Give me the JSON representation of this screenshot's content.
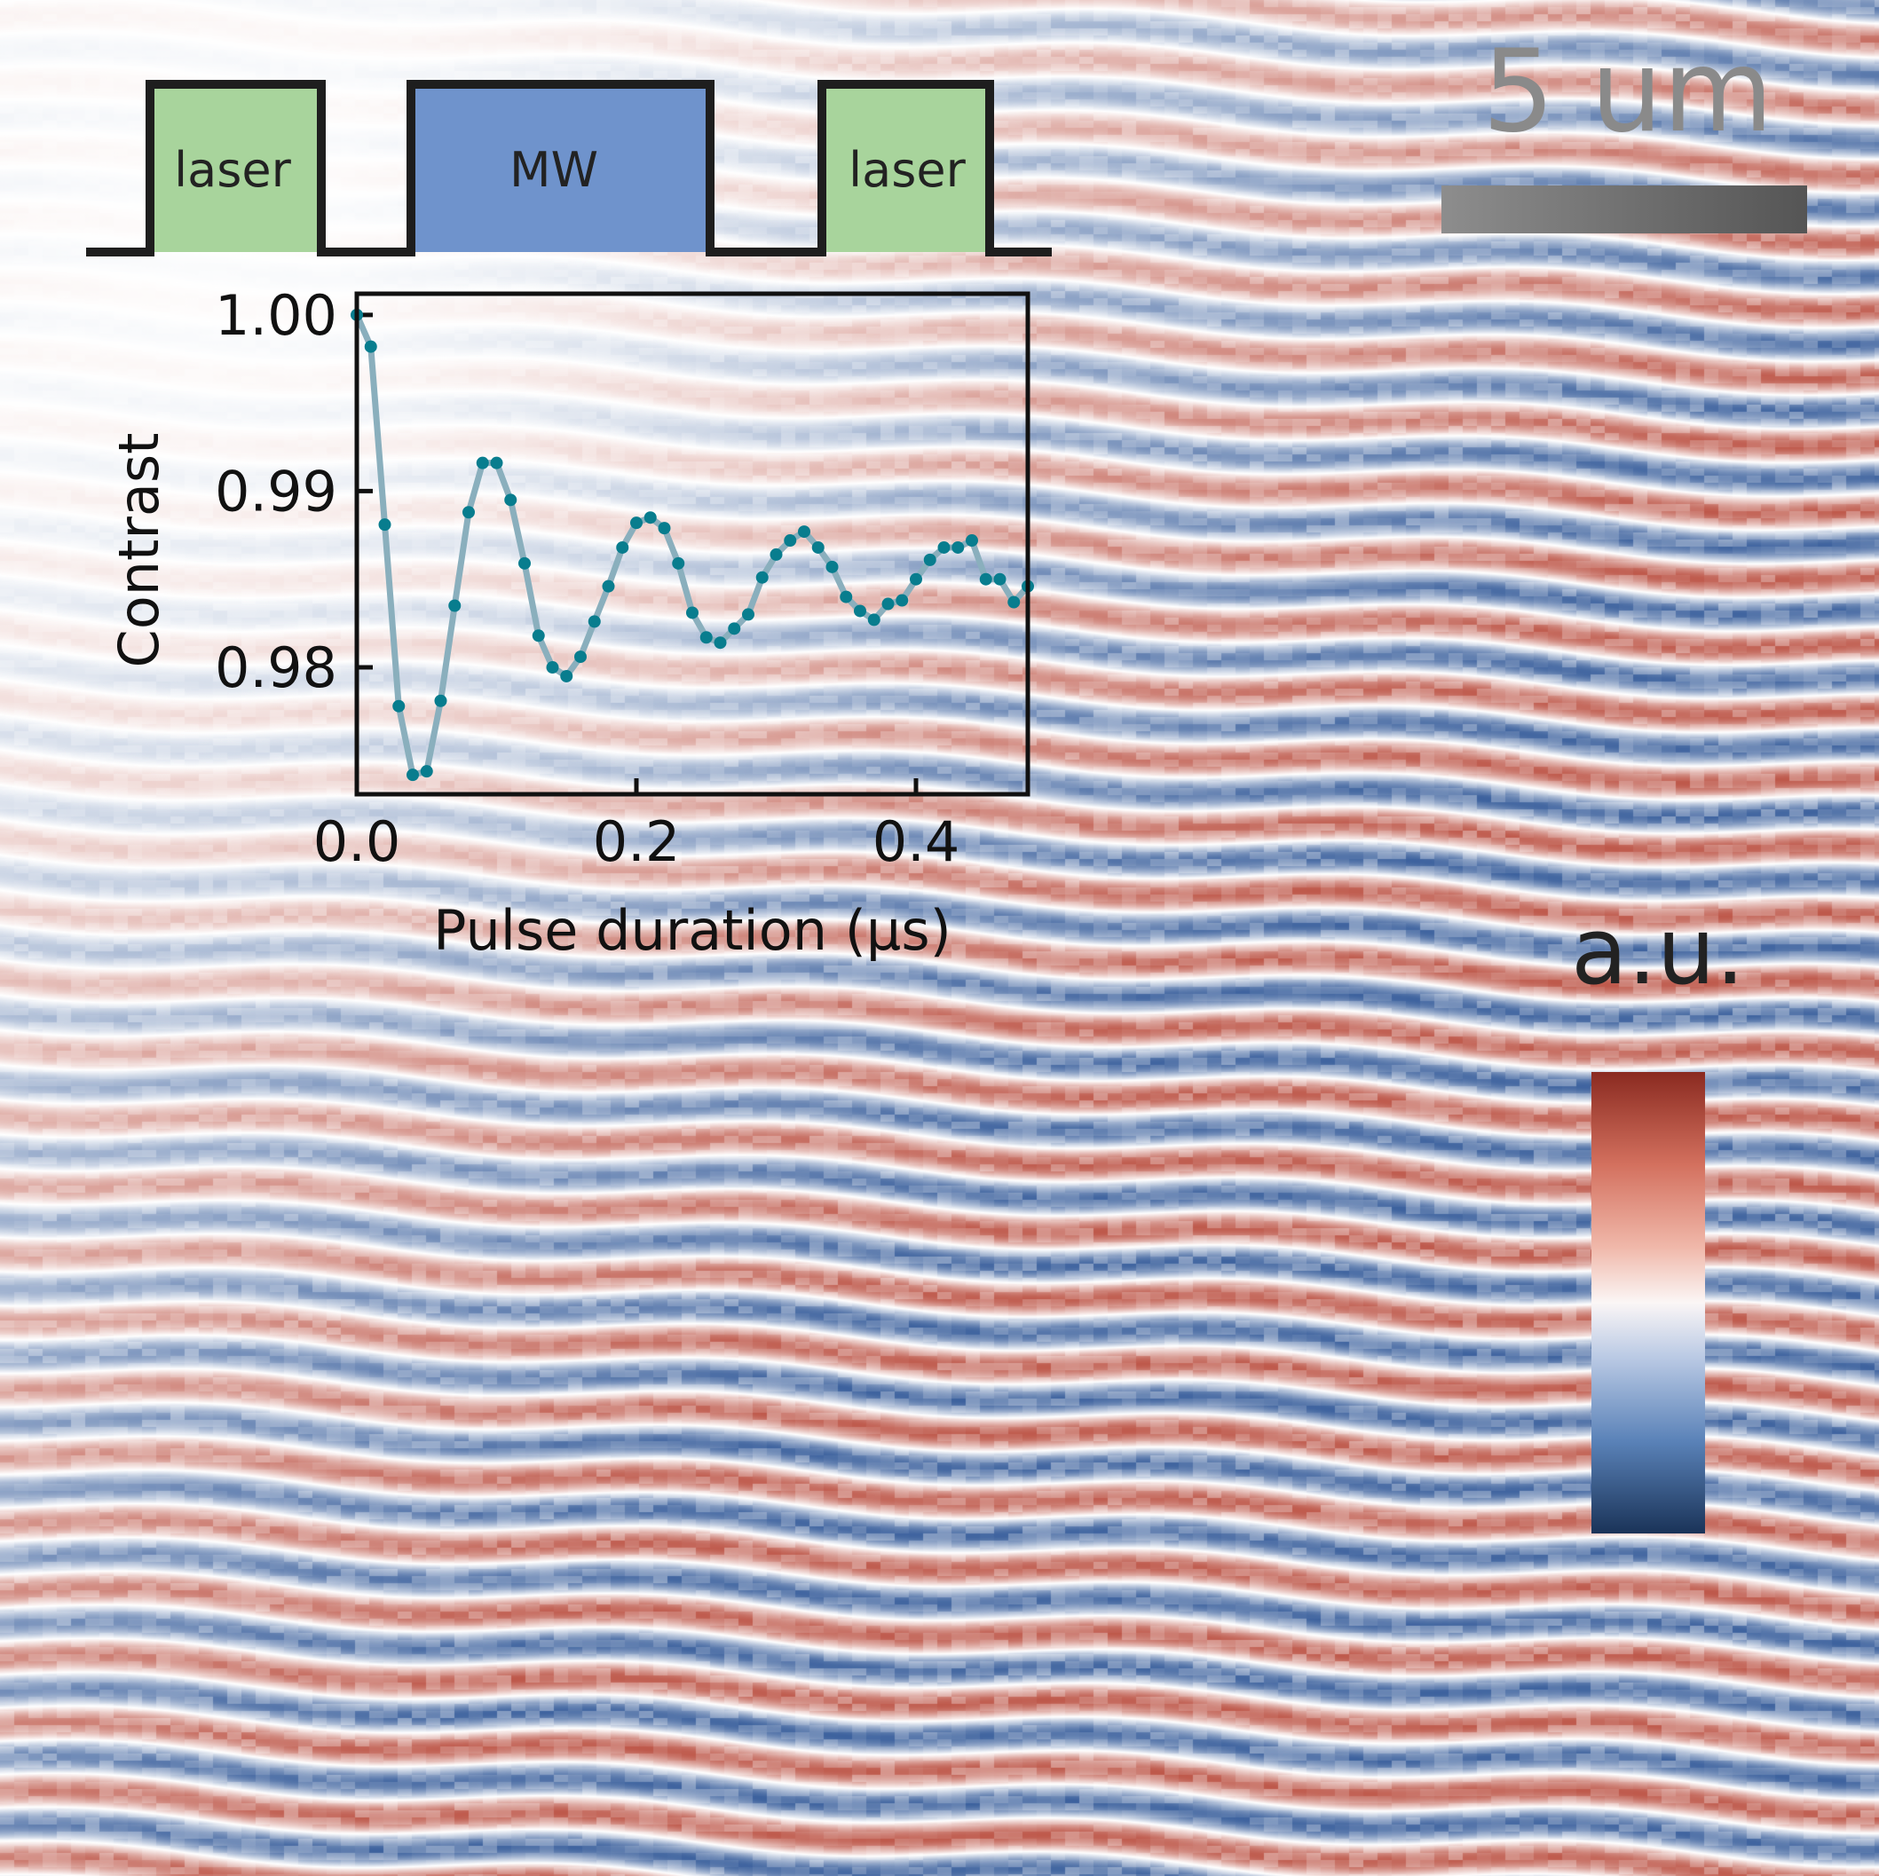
{
  "pulse_sequence": {
    "pulses": [
      {
        "label": "laser",
        "color": "#a8d49c"
      },
      {
        "label": "MW",
        "color": "#6f93cc"
      },
      {
        "label": "laser",
        "color": "#a8d49c"
      }
    ]
  },
  "scale_bar": {
    "label": "5 um"
  },
  "colorbar": {
    "label": "a.u."
  },
  "chart_data": {
    "type": "line",
    "xlabel": "Pulse duration (μs)",
    "ylabel": "Contrast",
    "xlim": [
      0,
      0.48
    ],
    "ylim": [
      0.9728,
      1.0012
    ],
    "xticks": [
      {
        "v": 0.0,
        "label": "0.0"
      },
      {
        "v": 0.2,
        "label": "0.2"
      },
      {
        "v": 0.4,
        "label": "0.4"
      }
    ],
    "yticks": [
      {
        "v": 1.0,
        "label": "1.00"
      },
      {
        "v": 0.99,
        "label": "0.99"
      },
      {
        "v": 0.98,
        "label": "0.98"
      }
    ],
    "series": [
      {
        "name": "contrast",
        "line_color": "#8aafbd",
        "marker_color": "#087d8e",
        "x": [
          0,
          0.01,
          0.02,
          0.03,
          0.04,
          0.05,
          0.06,
          0.07,
          0.08,
          0.09,
          0.1,
          0.11,
          0.12,
          0.13,
          0.14,
          0.15,
          0.16,
          0.17,
          0.18,
          0.19,
          0.2,
          0.21,
          0.22,
          0.23,
          0.24,
          0.25,
          0.26,
          0.27,
          0.28,
          0.29,
          0.3,
          0.31,
          0.32,
          0.33,
          0.34,
          0.35,
          0.36,
          0.37,
          0.38,
          0.39,
          0.4,
          0.41,
          0.42,
          0.43,
          0.44,
          0.45,
          0.46,
          0.47,
          0.48
        ],
        "y": [
          1.0,
          0.9982,
          0.9881,
          0.9778,
          0.9739,
          0.9741,
          0.9781,
          0.9835,
          0.9888,
          0.9916,
          0.9916,
          0.9895,
          0.9859,
          0.9818,
          0.98,
          0.9795,
          0.9806,
          0.9826,
          0.9846,
          0.9868,
          0.9882,
          0.9885,
          0.9879,
          0.9859,
          0.9831,
          0.9817,
          0.9814,
          0.9822,
          0.983,
          0.9851,
          0.9864,
          0.9872,
          0.9877,
          0.9868,
          0.9857,
          0.984,
          0.9832,
          0.9827,
          0.9836,
          0.9838,
          0.985,
          0.9861,
          0.9868,
          0.9868,
          0.9872,
          0.985,
          0.985,
          0.9837,
          0.9846
        ]
      }
    ]
  }
}
